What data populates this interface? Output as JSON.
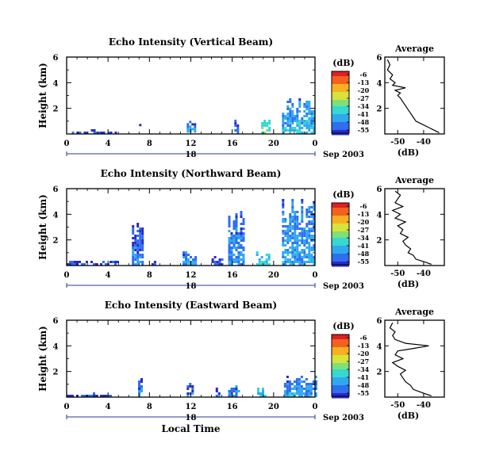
{
  "figure": {
    "date_label": "Sep 2003",
    "xlabel": "Local Time",
    "colorbar_unit": "(dB)",
    "colorbar_ticks": [
      "-6",
      "-13",
      "-20",
      "-27",
      "-34",
      "-41",
      "-48",
      "-55"
    ],
    "colormap": [
      "#2a2ac8",
      "#2f6ef0",
      "#30a8f0",
      "#36d8d0",
      "#7ee07a",
      "#d8e23a",
      "#f8b020",
      "#f46020",
      "#e02020"
    ]
  },
  "chart_data": [
    {
      "type": "heatmap",
      "title": "Echo Intensity (Vertical Beam)",
      "ylabel": "Height (km)",
      "xlabel": "",
      "x_ticks": [
        "0",
        "4",
        "8",
        "12",
        "16",
        "20",
        "0"
      ],
      "x_range_hours": [
        0,
        24
      ],
      "day_label": "18",
      "y_ticks": [
        "2",
        "4",
        "6"
      ],
      "y_range_km": [
        0,
        6
      ],
      "value_units": "dB",
      "echoes": [
        {
          "hours": [
            0.5,
            4.8
          ],
          "heights_km": [
            0.0,
            0.4
          ],
          "intensity_db": -48
        },
        {
          "hours": [
            7.0,
            7.2
          ],
          "heights_km": [
            0.6,
            1.0
          ],
          "intensity_db": -45
        },
        {
          "hours": [
            11.6,
            12.4
          ],
          "heights_km": [
            0.1,
            1.5
          ],
          "intensity_db": -44
        },
        {
          "hours": [
            14.0,
            14.2
          ],
          "heights_km": [
            0.4,
            0.6
          ],
          "intensity_db": -50
        },
        {
          "hours": [
            16.2,
            16.6
          ],
          "heights_km": [
            0.0,
            1.2
          ],
          "intensity_db": -48
        },
        {
          "hours": [
            18.8,
            19.7
          ],
          "heights_km": [
            0.0,
            1.2
          ],
          "intensity_db": -30
        },
        {
          "hours": [
            20.8,
            23.9
          ],
          "heights_km": [
            0.0,
            2.9
          ],
          "intensity_db": -40
        }
      ],
      "average_profile": {
        "title": "Average",
        "xlabel": "(dB)",
        "x_ticks": [
          "-50",
          "-40"
        ],
        "y_ticks": [
          "2",
          "4",
          "6"
        ],
        "height_km": [
          0.1,
          0.3,
          0.5,
          0.8,
          1.0,
          1.3,
          1.6,
          1.9,
          2.2,
          2.5,
          2.8,
          3.0,
          3.2,
          3.4,
          3.6,
          3.8,
          4.0,
          4.3,
          4.6,
          5.0,
          5.4,
          5.8
        ],
        "db": [
          -34,
          -36,
          -38,
          -41,
          -43,
          -44,
          -45,
          -46,
          -47,
          -48,
          -49,
          -50,
          -49,
          -51,
          -47,
          -52,
          -51,
          -53,
          -52,
          -54,
          -53,
          -54
        ]
      }
    },
    {
      "type": "heatmap",
      "title": "Echo Intensity (Northward Beam)",
      "ylabel": "Height (km)",
      "xlabel": "",
      "x_ticks": [
        "0",
        "4",
        "8",
        "12",
        "16",
        "20",
        "0"
      ],
      "x_range_hours": [
        0,
        24
      ],
      "day_label": "18",
      "y_ticks": [
        "2",
        "4",
        "6"
      ],
      "y_range_km": [
        0,
        6
      ],
      "value_units": "dB",
      "echoes": [
        {
          "hours": [
            0.0,
            5.0
          ],
          "heights_km": [
            0.0,
            0.5
          ],
          "intensity_db": -47
        },
        {
          "hours": [
            6.3,
            7.3
          ],
          "heights_km": [
            0.0,
            3.5
          ],
          "intensity_db": -46
        },
        {
          "hours": [
            8.2,
            8.6
          ],
          "heights_km": [
            0.0,
            0.4
          ],
          "intensity_db": -48
        },
        {
          "hours": [
            11.2,
            12.4
          ],
          "heights_km": [
            0.0,
            1.3
          ],
          "intensity_db": -42
        },
        {
          "hours": [
            14.0,
            15.0
          ],
          "heights_km": [
            0.0,
            1.0
          ],
          "intensity_db": -47
        },
        {
          "hours": [
            15.6,
            17.2
          ],
          "heights_km": [
            0.0,
            4.6
          ],
          "intensity_db": -44
        },
        {
          "hours": [
            18.3,
            19.6
          ],
          "heights_km": [
            0.0,
            1.3
          ],
          "intensity_db": -34
        },
        {
          "hours": [
            20.8,
            24.0
          ],
          "heights_km": [
            0.0,
            5.6
          ],
          "intensity_db": -42
        }
      ],
      "average_profile": {
        "title": "Average",
        "xlabel": "(dB)",
        "x_ticks": [
          "-50",
          "-40"
        ],
        "y_ticks": [
          "2",
          "4",
          "6"
        ],
        "height_km": [
          0.1,
          0.3,
          0.5,
          0.8,
          1.0,
          1.3,
          1.6,
          1.9,
          2.2,
          2.5,
          2.8,
          3.1,
          3.4,
          3.7,
          4.0,
          4.3,
          4.6,
          4.9,
          5.2,
          5.5,
          5.8
        ],
        "db": [
          -37,
          -40,
          -43,
          -44,
          -46,
          -45,
          -47,
          -48,
          -46,
          -49,
          -48,
          -50,
          -47,
          -51,
          -49,
          -52,
          -48,
          -51,
          -50,
          -49,
          -51
        ]
      }
    },
    {
      "type": "heatmap",
      "title": "Echo Intensity (Eastward Beam)",
      "ylabel": "Height (km)",
      "xlabel": "Local Time",
      "x_ticks": [
        "0",
        "4",
        "8",
        "12",
        "16",
        "20",
        "0"
      ],
      "x_range_hours": [
        0,
        24
      ],
      "day_label": "18",
      "y_ticks": [
        "2",
        "4",
        "6"
      ],
      "y_range_km": [
        0,
        6
      ],
      "value_units": "dB",
      "echoes": [
        {
          "hours": [
            0.0,
            4.5
          ],
          "heights_km": [
            0.0,
            0.4
          ],
          "intensity_db": -47
        },
        {
          "hours": [
            3.8,
            3.9
          ],
          "heights_km": [
            4.4,
            4.6
          ],
          "intensity_db": -50
        },
        {
          "hours": [
            6.9,
            7.2
          ],
          "heights_km": [
            0.0,
            1.6
          ],
          "intensity_db": -45
        },
        {
          "hours": [
            11.6,
            12.2
          ],
          "heights_km": [
            0.0,
            1.2
          ],
          "intensity_db": -46
        },
        {
          "hours": [
            14.4,
            14.7
          ],
          "heights_km": [
            0.0,
            0.8
          ],
          "intensity_db": -46
        },
        {
          "hours": [
            15.6,
            16.6
          ],
          "heights_km": [
            0.0,
            1.2
          ],
          "intensity_db": -44
        },
        {
          "hours": [
            18.4,
            19.2
          ],
          "heights_km": [
            0.0,
            1.0
          ],
          "intensity_db": -36
        },
        {
          "hours": [
            21.0,
            24.0
          ],
          "heights_km": [
            0.0,
            2.0
          ],
          "intensity_db": -42
        }
      ],
      "average_profile": {
        "title": "Average",
        "xlabel": "(dB)",
        "x_ticks": [
          "-50",
          "-40"
        ],
        "y_ticks": [
          "2",
          "4",
          "6"
        ],
        "height_km": [
          0.1,
          0.3,
          0.6,
          0.9,
          1.2,
          1.5,
          1.8,
          2.1,
          2.4,
          2.7,
          3.0,
          3.3,
          3.6,
          3.8,
          4.0,
          4.2,
          4.5,
          4.8,
          5.1,
          5.4,
          5.8
        ],
        "db": [
          -37,
          -40,
          -44,
          -45,
          -47,
          -48,
          -49,
          -47,
          -50,
          -52,
          -48,
          -51,
          -50,
          -44,
          -38,
          -47,
          -51,
          -52,
          -51,
          -53,
          -52
        ]
      }
    }
  ]
}
